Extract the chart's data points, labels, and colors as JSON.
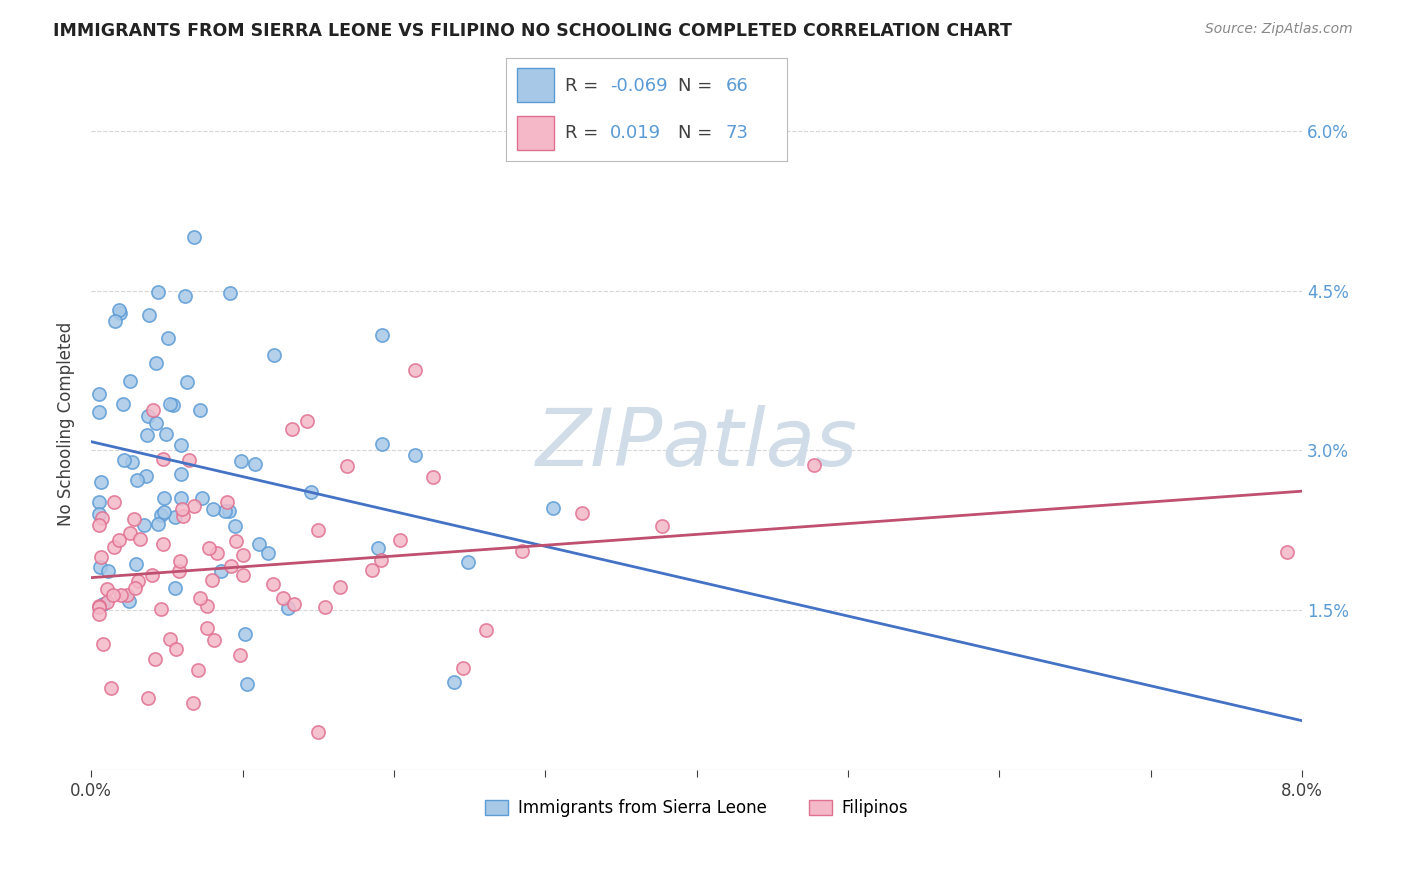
{
  "title": "IMMIGRANTS FROM SIERRA LEONE VS FILIPINO NO SCHOOLING COMPLETED CORRELATION CHART",
  "source": "Source: ZipAtlas.com",
  "ylabel": "No Schooling Completed",
  "legend_R1": "-0.069",
  "legend_N1": "66",
  "legend_R2": "0.019",
  "legend_N2": "73",
  "blue_color": "#a8c8e8",
  "blue_edge_color": "#5b9bd5",
  "pink_color": "#f4b8c8",
  "pink_edge_color": "#e07090",
  "blue_line_color": "#4472c4",
  "pink_line_color": "#c05070",
  "background_color": "#ffffff",
  "grid_color": "#cccccc",
  "watermark_color": "#d0dce8",
  "right_tick_color": "#5b9bd5",
  "text_color": "#404040",
  "title_color": "#222222",
  "source_color": "#888888"
}
